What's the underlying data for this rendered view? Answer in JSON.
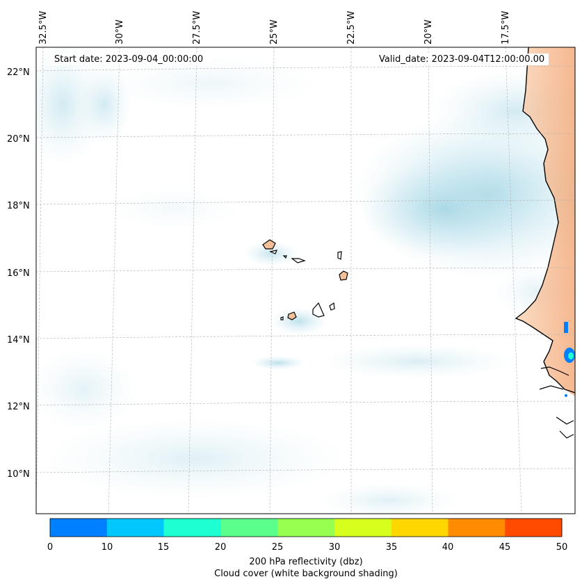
{
  "header": {
    "start_date": "Start date: 2023-09-04_00:00:00",
    "valid_date": "Valid_date: 2023-09-04T12:00:00.00"
  },
  "map": {
    "longitude_labels": [
      "32.5°W",
      "30°W",
      "27.5°W",
      "25°W",
      "22.5°W",
      "20°W",
      "17.5°W"
    ],
    "latitude_labels": [
      "22°N",
      "20°N",
      "18°N",
      "16°N",
      "14°N",
      "12°N",
      "10°N"
    ],
    "gridlines": true
  },
  "colorbar": {
    "ticks": [
      "0",
      "10",
      "15",
      "20",
      "25",
      "30",
      "35",
      "40",
      "45",
      "50"
    ],
    "colors": [
      "#0080ff",
      "#00c8ff",
      "#1effd2",
      "#5aff8c",
      "#96ff50",
      "#d7ff1e",
      "#ffd700",
      "#ff8c00",
      "#ff4b00"
    ],
    "label_line1": "200 hPa reflectivity (dbz)",
    "label_line2": "Cloud cover (white background shading)"
  }
}
